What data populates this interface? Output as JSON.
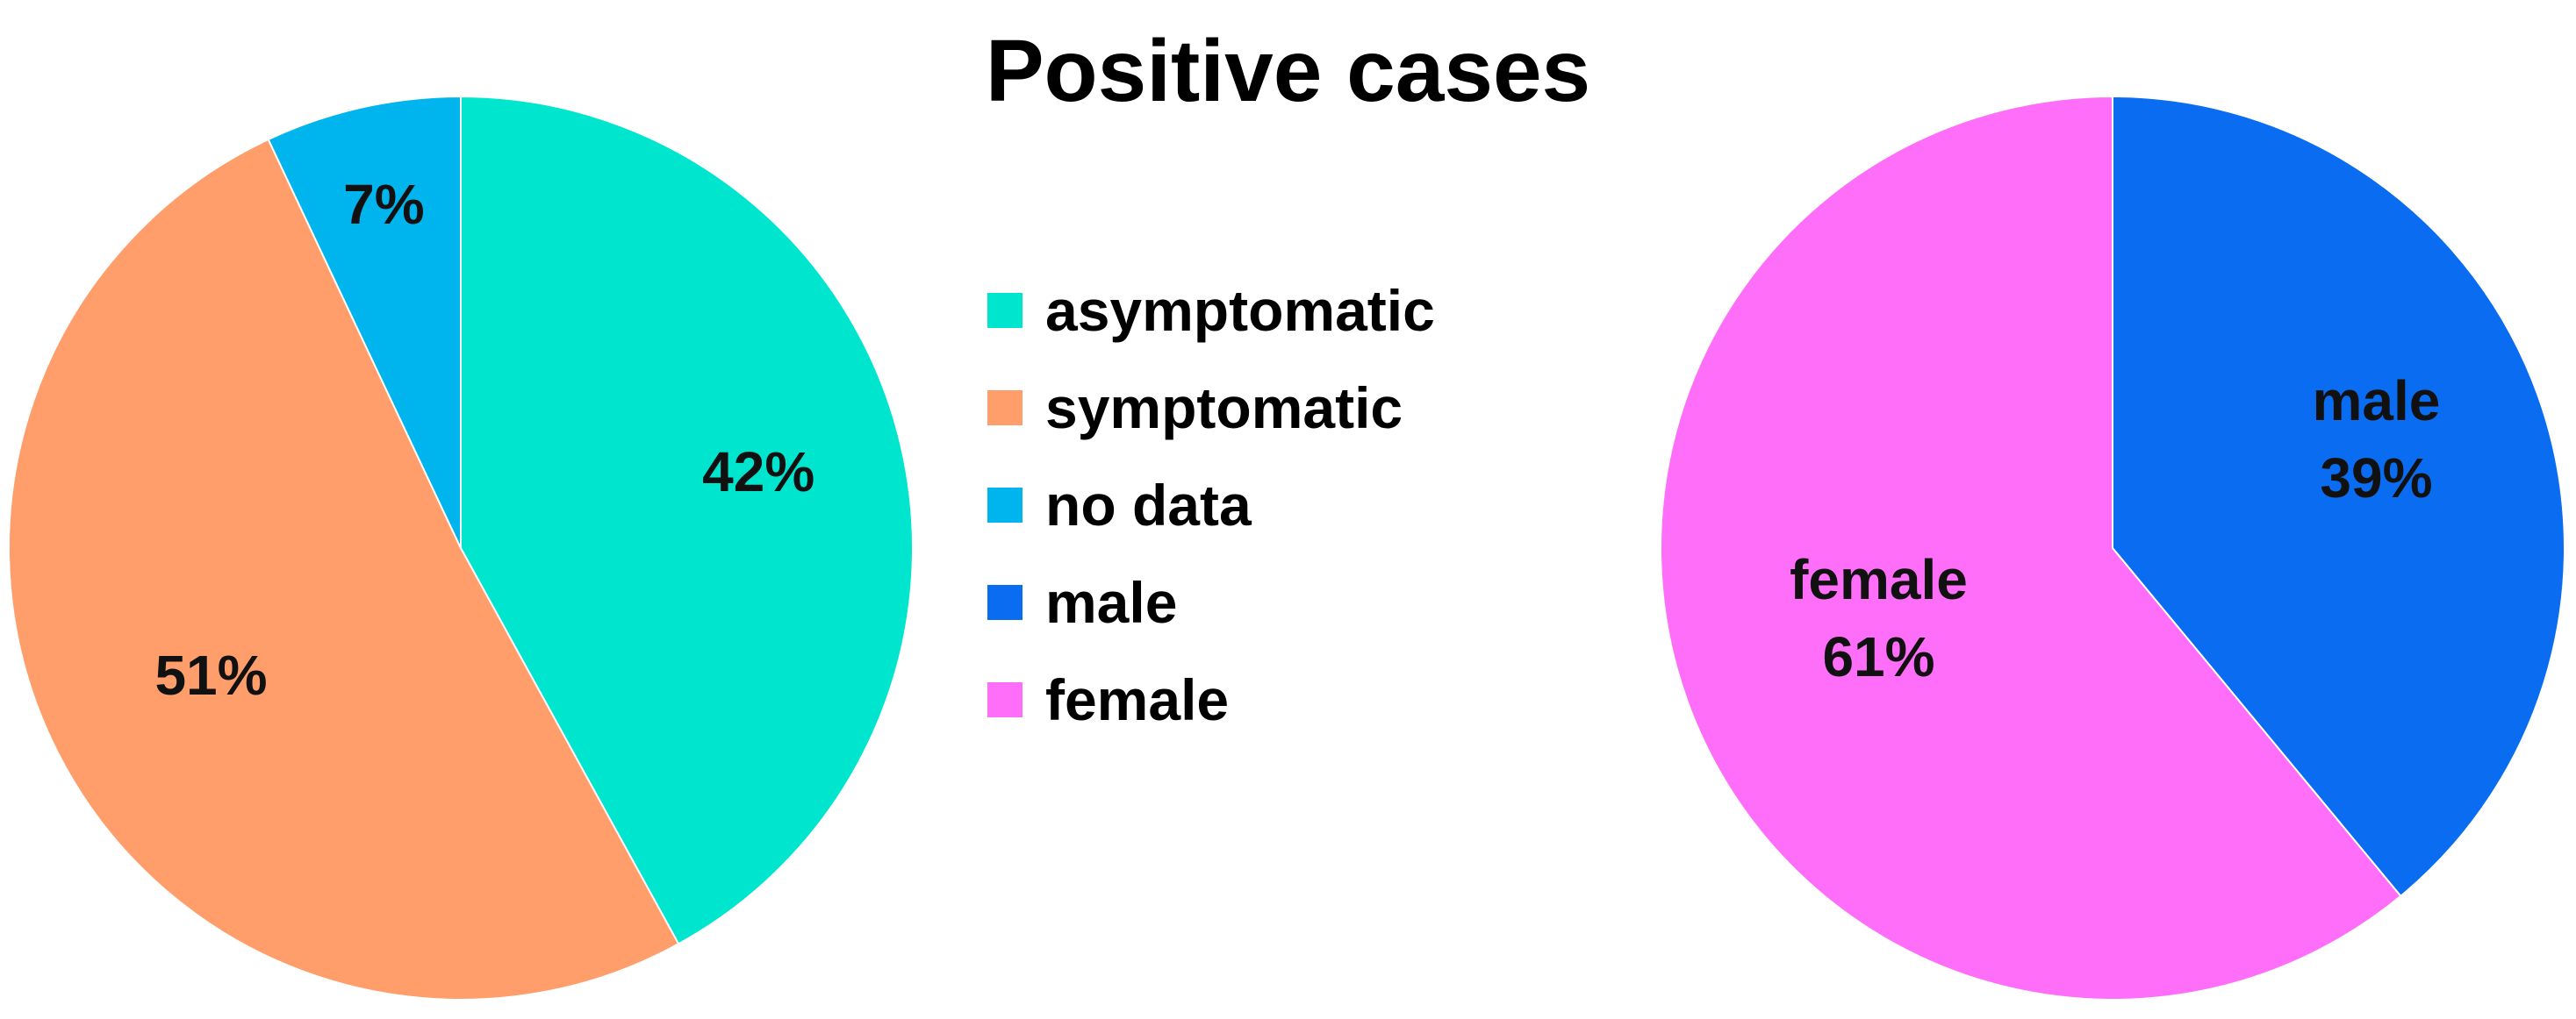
{
  "title": "Positive cases",
  "legend": [
    {
      "label": "asymptomatic",
      "color": "#00E5CE"
    },
    {
      "label": "symptomatic",
      "color": "#FF9E6B"
    },
    {
      "label": "no data",
      "color": "#00B4EE"
    },
    {
      "label": "male",
      "color": "#0A6CF0"
    },
    {
      "label": "female",
      "color": "#FF6EF8"
    }
  ],
  "chart_data": [
    {
      "type": "pie",
      "title": "Positive cases",
      "subject": "symptoms",
      "start_angle_deg": 0,
      "direction": "clockwise",
      "slices": [
        {
          "name": "asymptomatic",
          "value": 42,
          "label": "42%",
          "color": "#00E5CE"
        },
        {
          "name": "symptomatic",
          "value": 51,
          "label": "51%",
          "color": "#FF9E6B"
        },
        {
          "name": "no data",
          "value": 7,
          "label": "7%",
          "color": "#00B4EE"
        }
      ]
    },
    {
      "type": "pie",
      "title": "Positive cases",
      "subject": "sex",
      "start_angle_deg": 0,
      "direction": "clockwise",
      "slices": [
        {
          "name": "male",
          "value": 39,
          "label": "39%",
          "category_label": "male",
          "color": "#0A6CF0"
        },
        {
          "name": "female",
          "value": 61,
          "label": "61%",
          "category_label": "female",
          "color": "#FF6EF8"
        }
      ]
    }
  ]
}
